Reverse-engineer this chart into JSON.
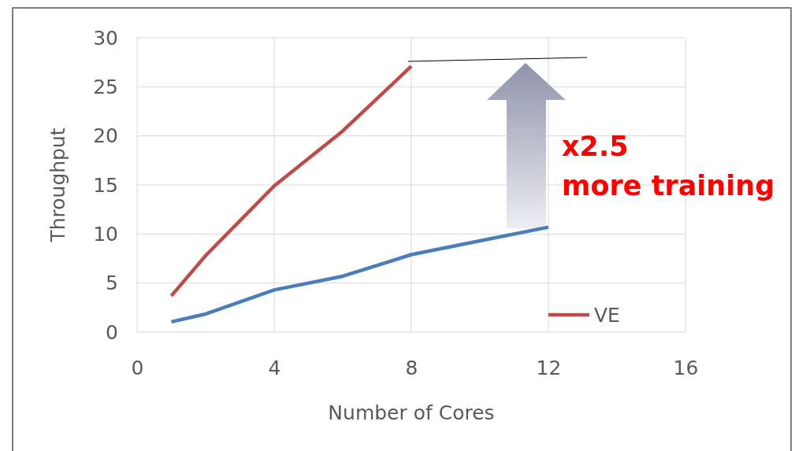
{
  "chart_data": {
    "type": "line",
    "xlabel": "Number of Cores",
    "ylabel": "Throughput",
    "xlim": [
      0,
      16
    ],
    "xticks": [
      0,
      4,
      8,
      12,
      16
    ],
    "ylim": [
      0,
      30
    ],
    "yticks": [
      0,
      5,
      10,
      15,
      20,
      25,
      30
    ],
    "grid": true,
    "legend": "right",
    "marker": "none",
    "line_style": "solid",
    "series": [
      {
        "color": "#4a7ebb",
        "x": [
          1,
          2,
          4,
          6,
          8,
          10,
          12
        ],
        "values": [
          1.05,
          1.85,
          4.3,
          5.7,
          7.9,
          9.3,
          10.7
        ]
      },
      {
        "name": "VE",
        "color": "#be4b48",
        "x": [
          1,
          2,
          4,
          6,
          8
        ],
        "values": [
          3.7,
          7.8,
          14.9,
          20.5,
          27.1
        ]
      }
    ],
    "annotations": [
      "x2.5",
      "more training"
    ]
  }
}
